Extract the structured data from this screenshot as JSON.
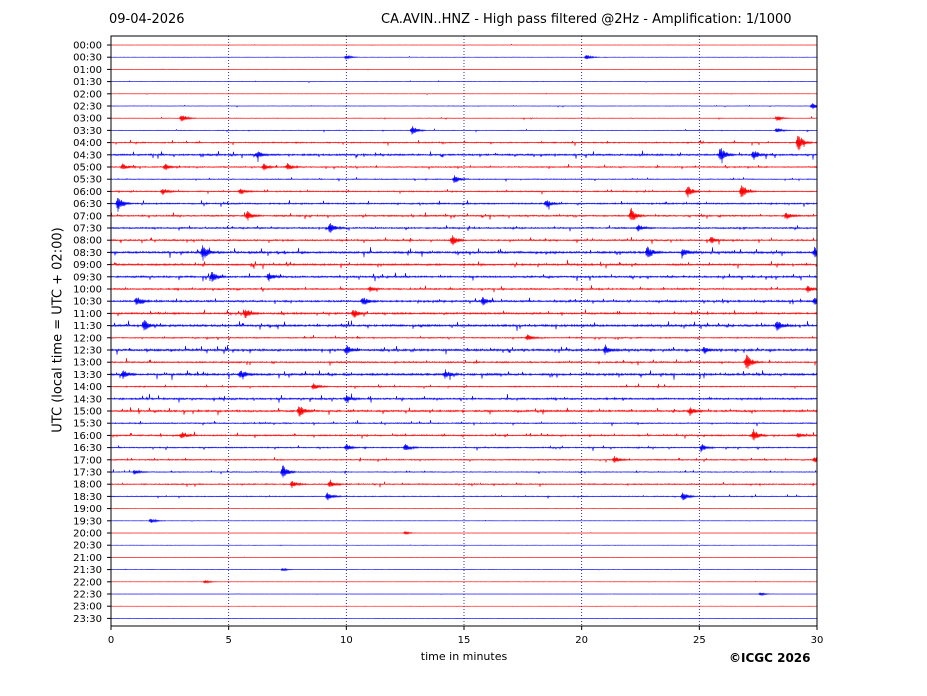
{
  "header": {
    "date": "09-04-2026",
    "title": "CA.AVIN..HNZ - High pass filtered @2Hz - Amplification: 1/1000"
  },
  "footer": {
    "copyright": "©ICGC 2026"
  },
  "chart_data": {
    "type": "line",
    "xlabel": "time in minutes",
    "ylabel": "UTC (local time = UTC + 02:00)",
    "xlim": [
      0,
      30
    ],
    "x_ticks": [
      "0",
      "5",
      "10",
      "15",
      "20",
      "25",
      "30"
    ],
    "grid": "vertical dotted at 5-minute intervals",
    "colors": {
      "even": "#ff0000",
      "odd": "#0000ff"
    },
    "rows": [
      {
        "label": "00:00",
        "color": "red",
        "level": 0.05,
        "events": []
      },
      {
        "label": "00:30",
        "color": "blue",
        "level": 0.05,
        "events": [
          [
            10.0,
            0.3
          ],
          [
            20.2,
            0.3
          ]
        ]
      },
      {
        "label": "01:00",
        "color": "red",
        "level": 0.06,
        "events": []
      },
      {
        "label": "01:30",
        "color": "blue",
        "level": 0.07,
        "events": []
      },
      {
        "label": "02:00",
        "color": "red",
        "level": 0.06,
        "events": []
      },
      {
        "label": "02:30",
        "color": "blue",
        "level": 0.08,
        "events": [
          [
            29.8,
            0.4
          ]
        ]
      },
      {
        "label": "03:00",
        "color": "red",
        "level": 0.1,
        "events": [
          [
            3.0,
            0.5
          ],
          [
            28.3,
            0.3
          ]
        ]
      },
      {
        "label": "03:30",
        "color": "blue",
        "level": 0.1,
        "events": [
          [
            12.8,
            0.6
          ],
          [
            28.3,
            0.3
          ]
        ]
      },
      {
        "label": "04:00",
        "color": "red",
        "level": 0.2,
        "events": [
          [
            29.2,
            1.1
          ]
        ]
      },
      {
        "label": "04:30",
        "color": "blue",
        "level": 0.3,
        "events": [
          [
            6.2,
            0.4
          ],
          [
            25.9,
            0.9
          ],
          [
            27.3,
            0.6
          ]
        ]
      },
      {
        "label": "05:00",
        "color": "red",
        "level": 0.2,
        "events": [
          [
            0.5,
            0.4
          ],
          [
            2.3,
            0.4
          ],
          [
            6.5,
            0.4
          ],
          [
            7.5,
            0.4
          ]
        ]
      },
      {
        "label": "05:30",
        "color": "blue",
        "level": 0.15,
        "events": [
          [
            14.6,
            0.5
          ]
        ]
      },
      {
        "label": "06:00",
        "color": "red",
        "level": 0.2,
        "events": [
          [
            2.2,
            0.4
          ],
          [
            5.5,
            0.4
          ],
          [
            24.5,
            0.7
          ],
          [
            26.8,
            0.9
          ]
        ]
      },
      {
        "label": "06:30",
        "color": "blue",
        "level": 0.25,
        "events": [
          [
            0.3,
            0.9
          ],
          [
            18.5,
            0.5
          ]
        ]
      },
      {
        "label": "07:00",
        "color": "red",
        "level": 0.25,
        "events": [
          [
            5.8,
            0.6
          ],
          [
            22.1,
            0.9
          ],
          [
            28.7,
            0.4
          ]
        ]
      },
      {
        "label": "07:30",
        "color": "blue",
        "level": 0.25,
        "events": [
          [
            9.3,
            0.6
          ],
          [
            22.4,
            0.4
          ]
        ]
      },
      {
        "label": "08:00",
        "color": "red",
        "level": 0.25,
        "events": [
          [
            14.5,
            0.7
          ],
          [
            25.5,
            0.4
          ]
        ]
      },
      {
        "label": "08:30",
        "color": "blue",
        "level": 0.35,
        "events": [
          [
            3.9,
            0.9
          ],
          [
            22.8,
            0.8
          ],
          [
            24.3,
            0.5
          ],
          [
            29.9,
            0.6
          ]
        ]
      },
      {
        "label": "09:00",
        "color": "red",
        "level": 0.3,
        "events": []
      },
      {
        "label": "09:30",
        "color": "blue",
        "level": 0.3,
        "events": [
          [
            4.3,
            0.7
          ],
          [
            6.7,
            0.5
          ]
        ]
      },
      {
        "label": "10:00",
        "color": "red",
        "level": 0.25,
        "events": [
          [
            11.0,
            0.3
          ],
          [
            29.6,
            0.4
          ]
        ]
      },
      {
        "label": "10:30",
        "color": "blue",
        "level": 0.3,
        "events": [
          [
            1.1,
            0.6
          ],
          [
            10.7,
            0.5
          ],
          [
            15.8,
            0.5
          ],
          [
            29.9,
            0.4
          ]
        ]
      },
      {
        "label": "11:00",
        "color": "red",
        "level": 0.3,
        "events": [
          [
            5.7,
            0.6
          ],
          [
            10.3,
            0.5
          ]
        ]
      },
      {
        "label": "11:30",
        "color": "blue",
        "level": 0.35,
        "events": [
          [
            1.4,
            0.7
          ],
          [
            28.3,
            0.6
          ]
        ]
      },
      {
        "label": "12:00",
        "color": "red",
        "level": 0.2,
        "events": [
          [
            17.7,
            0.4
          ]
        ]
      },
      {
        "label": "12:30",
        "color": "blue",
        "level": 0.35,
        "events": [
          [
            10.0,
            0.6
          ],
          [
            21.0,
            0.6
          ],
          [
            25.2,
            0.4
          ]
        ]
      },
      {
        "label": "13:00",
        "color": "red",
        "level": 0.25,
        "events": [
          [
            27.0,
            1.0
          ]
        ]
      },
      {
        "label": "13:30",
        "color": "blue",
        "level": 0.35,
        "events": [
          [
            0.5,
            0.5
          ],
          [
            5.5,
            0.5
          ],
          [
            14.2,
            0.5
          ]
        ]
      },
      {
        "label": "14:00",
        "color": "red",
        "level": 0.2,
        "events": [
          [
            8.6,
            0.4
          ]
        ]
      },
      {
        "label": "14:30",
        "color": "blue",
        "level": 0.3,
        "events": [
          [
            10.0,
            0.4
          ]
        ]
      },
      {
        "label": "15:00",
        "color": "red",
        "level": 0.3,
        "events": [
          [
            8.0,
            0.7
          ],
          [
            24.6,
            0.5
          ]
        ]
      },
      {
        "label": "15:30",
        "color": "blue",
        "level": 0.2,
        "events": []
      },
      {
        "label": "16:00",
        "color": "red",
        "level": 0.25,
        "events": [
          [
            3.0,
            0.4
          ],
          [
            27.3,
            0.7
          ],
          [
            29.2,
            0.3
          ]
        ]
      },
      {
        "label": "16:30",
        "color": "blue",
        "level": 0.2,
        "events": [
          [
            10.0,
            0.4
          ],
          [
            12.5,
            0.4
          ],
          [
            25.1,
            0.4
          ]
        ]
      },
      {
        "label": "17:00",
        "color": "red",
        "level": 0.2,
        "events": [
          [
            21.4,
            0.4
          ],
          [
            29.9,
            0.4
          ]
        ]
      },
      {
        "label": "17:30",
        "color": "blue",
        "level": 0.15,
        "events": [
          [
            7.3,
            0.9
          ],
          [
            1.0,
            0.3
          ]
        ]
      },
      {
        "label": "18:00",
        "color": "red",
        "level": 0.2,
        "events": [
          [
            7.7,
            0.4
          ],
          [
            9.3,
            0.4
          ]
        ]
      },
      {
        "label": "18:30",
        "color": "blue",
        "level": 0.15,
        "events": [
          [
            9.2,
            0.5
          ],
          [
            24.3,
            0.5
          ]
        ]
      },
      {
        "label": "19:00",
        "color": "red",
        "level": 0.04,
        "events": []
      },
      {
        "label": "19:30",
        "color": "blue",
        "level": 0.05,
        "events": [
          [
            1.7,
            0.3
          ]
        ]
      },
      {
        "label": "20:00",
        "color": "red",
        "level": 0.04,
        "events": [
          [
            12.5,
            0.2
          ]
        ]
      },
      {
        "label": "20:30",
        "color": "blue",
        "level": 0.04,
        "events": []
      },
      {
        "label": "21:00",
        "color": "red",
        "level": 0.04,
        "events": []
      },
      {
        "label": "21:30",
        "color": "blue",
        "level": 0.04,
        "events": [
          [
            7.3,
            0.2
          ]
        ]
      },
      {
        "label": "22:00",
        "color": "red",
        "level": 0.05,
        "events": [
          [
            4.0,
            0.2
          ]
        ]
      },
      {
        "label": "22:30",
        "color": "blue",
        "level": 0.04,
        "events": [
          [
            27.6,
            0.2
          ]
        ]
      },
      {
        "label": "23:00",
        "color": "red",
        "level": 0.03,
        "events": []
      },
      {
        "label": "23:30",
        "color": "blue",
        "level": 0.03,
        "events": []
      }
    ]
  }
}
